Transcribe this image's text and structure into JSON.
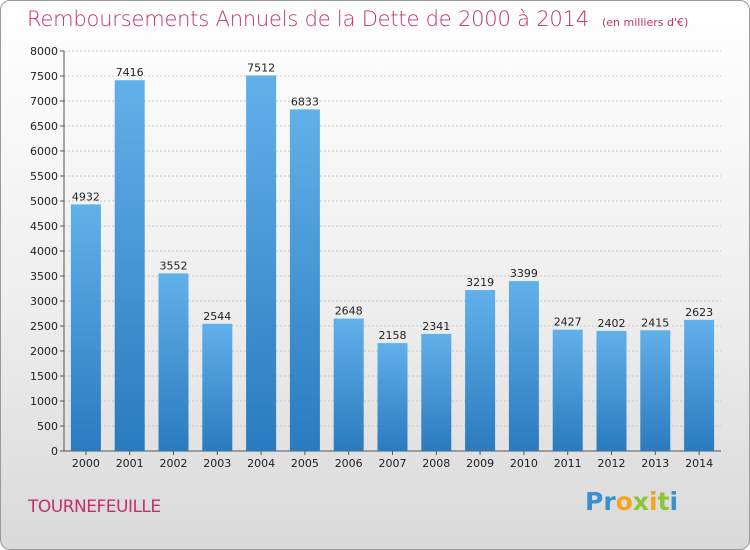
{
  "chart_data": {
    "type": "bar",
    "title": "Remboursements Annuels de la Dette de 2000 à 2014",
    "subtitle": "(en milliers d'€)",
    "categories": [
      "2000",
      "2001",
      "2002",
      "2003",
      "2004",
      "2005",
      "2006",
      "2007",
      "2008",
      "2009",
      "2010",
      "2011",
      "2012",
      "2013",
      "2014"
    ],
    "values": [
      4932,
      7416,
      3552,
      2544,
      7512,
      6833,
      2648,
      2158,
      2341,
      3219,
      3399,
      2427,
      2402,
      2415,
      2623
    ],
    "ylim": [
      0,
      8000
    ],
    "yticks": [
      0,
      500,
      1000,
      1500,
      2000,
      2500,
      3000,
      3500,
      4000,
      4500,
      5000,
      5500,
      6000,
      6500,
      7000,
      7500,
      8000
    ],
    "grid": true,
    "colors": {
      "bar_light": "#62b0ea",
      "bar_dark": "#2a7bbf",
      "title": "#c2306e"
    }
  },
  "footer": {
    "place": "TOURNEFEUILLE",
    "logo": "Proxiti"
  }
}
